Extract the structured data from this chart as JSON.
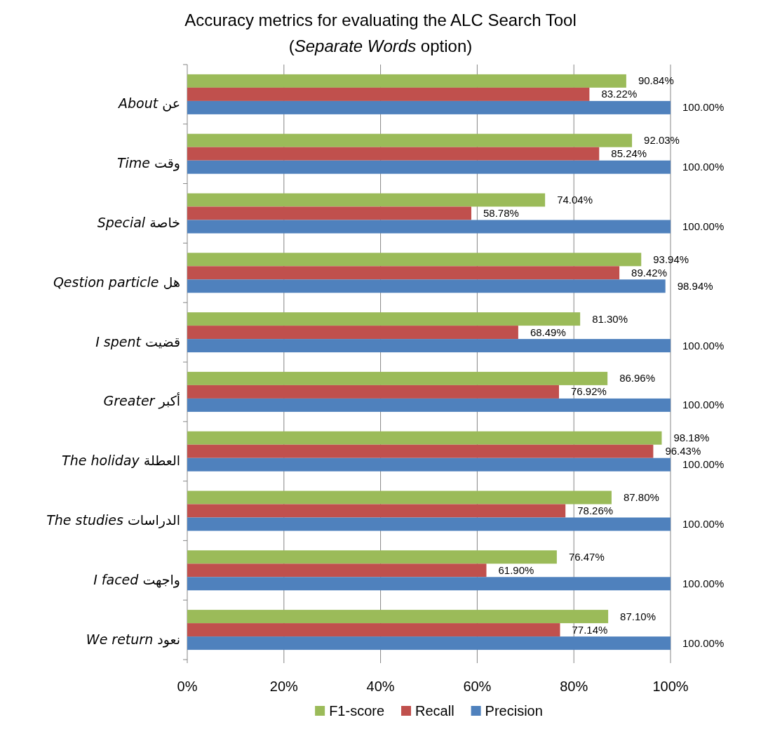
{
  "chart_data": {
    "type": "bar",
    "orientation": "horizontal",
    "title": "Accuracy metrics for evaluating the ALC Search Tool (*Separate Words* option)",
    "categories": [
      "*About* عن",
      "*Time* وقت",
      "*Special* خاصة",
      "*Qestion particle* هل",
      "*I spent* قضيت",
      "*Greater* أكبر",
      "*The holiday* العطلة",
      "*The studies* الدراسات",
      "*I faced* واجهت",
      "*We return* نعود"
    ],
    "series": [
      {
        "name": "F1-score",
        "color": "#9bbb59",
        "values": [
          90.84,
          92.03,
          74.04,
          93.94,
          81.3,
          86.96,
          98.18,
          87.8,
          76.47,
          87.1
        ],
        "value_labels": [
          "90.84%",
          "92.03%",
          "74.04%",
          "93.94%",
          "81.30%",
          "86.96%",
          "98.18%",
          "87.80%",
          "76.47%",
          "87.10%"
        ]
      },
      {
        "name": "Recall",
        "color": "#c0504d",
        "values": [
          83.22,
          85.24,
          58.78,
          89.42,
          68.49,
          76.92,
          96.43,
          78.26,
          61.9,
          77.14
        ],
        "value_labels": [
          "83.22%",
          "85.24%",
          "58.78%",
          "89.42%",
          "68.49%",
          "76.92%",
          "96.43%",
          "78.26%",
          "61.90%",
          "77.14%"
        ]
      },
      {
        "name": "Precision",
        "color": "#4f81bd",
        "values": [
          100,
          100,
          100,
          98.94,
          100,
          100,
          100,
          100,
          100,
          100
        ],
        "value_labels": [
          "100.00%",
          "100.00%",
          "100.00%",
          "98.94%",
          "100.00%",
          "100.00%",
          "100.00%",
          "100.00%",
          "100.00%",
          "100.00%"
        ]
      }
    ],
    "xlim": [
      0,
      100
    ],
    "xticks": [
      {
        "value": 0,
        "label": "0%"
      },
      {
        "value": 20,
        "label": "20%"
      },
      {
        "value": 40,
        "label": "40%"
      },
      {
        "value": 60,
        "label": "60%"
      },
      {
        "value": 80,
        "label": "80%"
      },
      {
        "value": 100,
        "label": "100%"
      }
    ],
    "grid": "x",
    "legend": "bottom"
  }
}
